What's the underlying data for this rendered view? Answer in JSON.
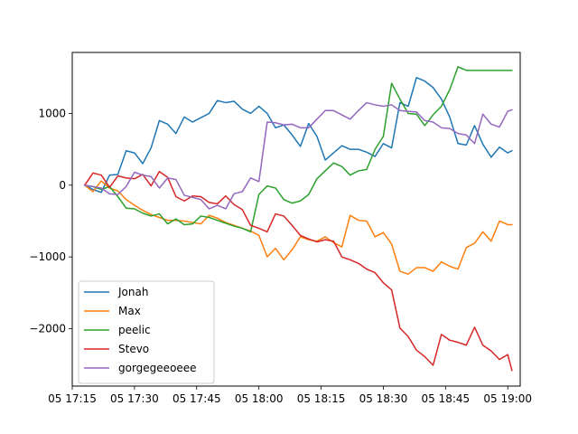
{
  "chart_data": {
    "type": "line",
    "title": "",
    "xlabel": "",
    "ylabel": "",
    "x_type": "time",
    "x": [
      "17:18",
      "17:20",
      "17:22",
      "17:24",
      "17:26",
      "17:28",
      "17:30",
      "17:32",
      "17:34",
      "17:36",
      "17:38",
      "17:40",
      "17:42",
      "17:44",
      "17:46",
      "17:48",
      "17:50",
      "17:52",
      "17:54",
      "17:56",
      "17:58",
      "18:00",
      "18:02",
      "18:04",
      "18:06",
      "18:08",
      "18:10",
      "18:12",
      "18:14",
      "18:16",
      "18:18",
      "18:20",
      "18:22",
      "18:24",
      "18:26",
      "18:28",
      "18:30",
      "18:32",
      "18:34",
      "18:36",
      "18:38",
      "18:40",
      "18:42",
      "18:44",
      "18:46",
      "18:48",
      "18:50",
      "18:52",
      "18:54",
      "18:56",
      "18:58",
      "19:00",
      "19:01"
    ],
    "xlim": [
      "17:15",
      "19:03"
    ],
    "ylim": [
      -2800,
      1850
    ],
    "x_ticks": [
      "05 17:15",
      "05 17:30",
      "05 17:45",
      "05 18:00",
      "05 18:15",
      "05 18:30",
      "05 18:45",
      "05 19:00"
    ],
    "y_ticks": [
      "−2000",
      "−1000",
      "0",
      "1000"
    ],
    "y_tick_values": [
      -2000,
      -1000,
      0,
      1000
    ],
    "x_tick_values": [
      "17:15",
      "17:30",
      "17:45",
      "18:00",
      "18:15",
      "18:30",
      "18:45",
      "19:00"
    ],
    "grid": false,
    "legend_position": "lower-left",
    "series": [
      {
        "name": "Jonah",
        "color": "#1f77b4",
        "values": [
          0,
          -60,
          -100,
          140,
          150,
          480,
          450,
          300,
          520,
          900,
          850,
          720,
          950,
          880,
          940,
          1000,
          1180,
          1150,
          1170,
          1060,
          1000,
          1100,
          1000,
          800,
          840,
          700,
          540,
          860,
          680,
          350,
          450,
          550,
          500,
          500,
          460,
          400,
          580,
          520,
          1150,
          1100,
          1500,
          1450,
          1360,
          1200,
          950,
          580,
          560,
          830,
          570,
          390,
          530,
          450,
          480
        ]
      },
      {
        "name": "Max",
        "color": "#ff7f0e",
        "values": [
          0,
          -90,
          60,
          -40,
          -80,
          -200,
          -280,
          -350,
          -410,
          -450,
          -490,
          -490,
          -500,
          -520,
          -540,
          -420,
          -460,
          -520,
          -560,
          -600,
          -640,
          -700,
          -1000,
          -880,
          -1040,
          -900,
          -720,
          -760,
          -780,
          -720,
          -800,
          -860,
          -420,
          -490,
          -500,
          -720,
          -660,
          -820,
          -1200,
          -1240,
          -1150,
          -1150,
          -1200,
          -1070,
          -1130,
          -1170,
          -870,
          -810,
          -650,
          -780,
          -500,
          -550,
          -550
        ]
      },
      {
        "name": "peelic",
        "color": "#2ca02c",
        "values": [
          0,
          -20,
          -60,
          -20,
          -160,
          -320,
          -330,
          -390,
          -430,
          -400,
          -540,
          -470,
          -550,
          -540,
          -430,
          -450,
          -490,
          -530,
          -570,
          -600,
          -650,
          -130,
          -10,
          -40,
          -200,
          -250,
          -220,
          -130,
          90,
          200,
          310,
          260,
          140,
          200,
          220,
          500,
          680,
          1420,
          1200,
          1000,
          990,
          830,
          980,
          1100,
          1330,
          1650,
          1600,
          1600,
          1600,
          1600,
          1600,
          1600,
          1600
        ]
      },
      {
        "name": "Stevo",
        "color": "#d62728",
        "values": [
          0,
          170,
          140,
          -30,
          130,
          100,
          90,
          150,
          -10,
          190,
          110,
          -160,
          -220,
          -150,
          -160,
          -240,
          -260,
          -150,
          -270,
          -340,
          -560,
          -600,
          -650,
          -400,
          -430,
          -560,
          -700,
          -750,
          -790,
          -760,
          -780,
          -1000,
          -1040,
          -1090,
          -1170,
          -1220,
          -1360,
          -1460,
          -1990,
          -2110,
          -2300,
          -2390,
          -2510,
          -2080,
          -2160,
          -2190,
          -2230,
          -1980,
          -2230,
          -2310,
          -2430,
          -2360,
          -2580
        ]
      },
      {
        "name": "gorgegeeoeee",
        "color": "#9467bd",
        "values": [
          0,
          -20,
          -40,
          -120,
          -130,
          -20,
          180,
          140,
          120,
          -40,
          100,
          80,
          -140,
          -170,
          -200,
          -330,
          -280,
          -330,
          -120,
          -90,
          100,
          50,
          880,
          870,
          840,
          850,
          800,
          800,
          920,
          1040,
          1040,
          980,
          920,
          1040,
          1150,
          1120,
          1100,
          1120,
          1040,
          1030,
          1020,
          900,
          880,
          800,
          790,
          720,
          700,
          580,
          990,
          850,
          810,
          1030,
          1050
        ]
      }
    ]
  }
}
